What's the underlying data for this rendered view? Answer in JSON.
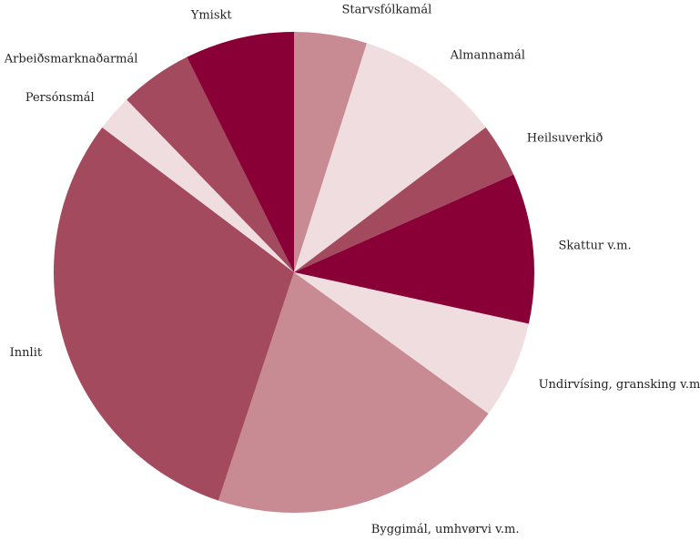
{
  "chart_data": {
    "type": "pie",
    "title": "",
    "start_angle_deg": 0,
    "direction": "clockwise",
    "legend": "none",
    "slices": [
      {
        "label": "Starvsfólkamál",
        "value": 5.0,
        "color": "#c98b93"
      },
      {
        "label": "Almannamál",
        "value": 10.0,
        "color": "#efdde0"
      },
      {
        "label": "Heilsuverkið",
        "value": 3.7,
        "color": "#a34a5e"
      },
      {
        "label": "Skattur v.m.",
        "value": 10.3,
        "color": "#880036"
      },
      {
        "label": "Undirvísing, gransking v.m.",
        "value": 6.7,
        "color": "#efdde0"
      },
      {
        "label": "Byggimál, umhvørvi v.m.",
        "value": 20.5,
        "color": "#c98b93"
      },
      {
        "label": "Innlit",
        "value": 30.8,
        "color": "#a34a5e"
      },
      {
        "label": "Persónsmál",
        "value": 2.5,
        "color": "#efdde0"
      },
      {
        "label": "Arbeiðsmarknaðarmál",
        "value": 5.0,
        "color": "#a34a5e"
      },
      {
        "label": "Ymiskt",
        "value": 7.5,
        "color": "#880036"
      }
    ]
  }
}
